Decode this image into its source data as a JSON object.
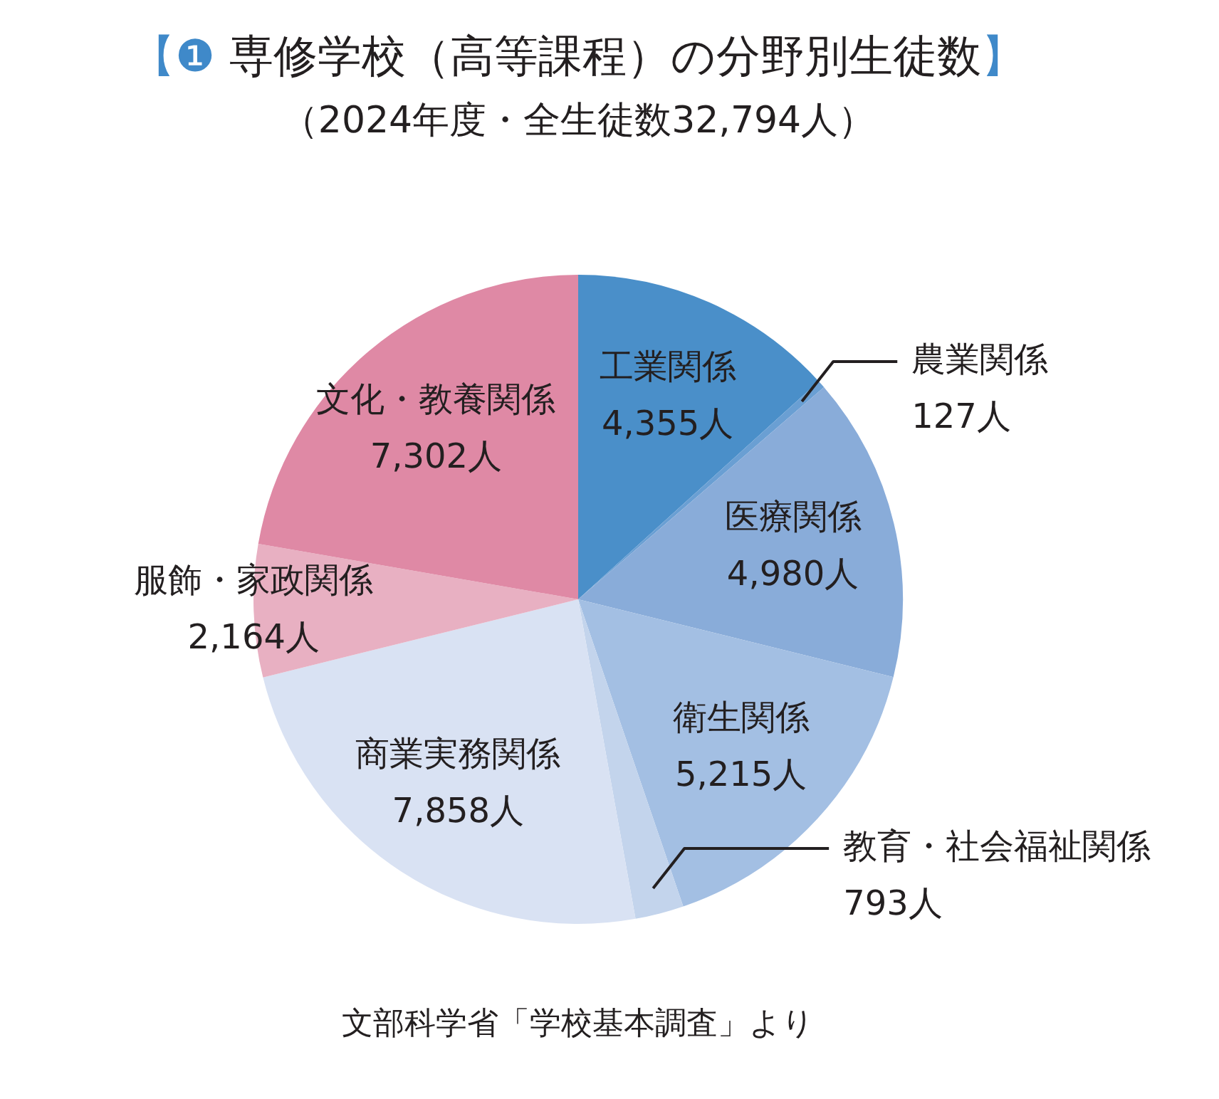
{
  "chart_data": {
    "type": "pie",
    "title": "【❶ 専修学校（高等課程）の分野別生徒数】",
    "subtitle": "（2024年度・全生徒数32,794人）",
    "annotations": [
      "文部科学省「学校基本調査」より"
    ],
    "categories": [
      "工業関係",
      "農業関係",
      "医療関係",
      "衛生関係",
      "教育・社会福祉関係",
      "商業実務関係",
      "服飾・家政関係",
      "文化・教養関係"
    ],
    "values": [
      4355,
      127,
      4980,
      5215,
      793,
      7858,
      2164,
      7302
    ],
    "value_labels": [
      "4,355人",
      "127人",
      "4,980人",
      "5,215人",
      "793人",
      "7,858人",
      "2,164人",
      "7,302人"
    ],
    "colors": [
      "#4a8fc9",
      "#6a9fd3",
      "#89acd9",
      "#a3bfe3",
      "#c3d4ec",
      "#d9e2f3",
      "#e8b0c2",
      "#df89a5"
    ]
  }
}
